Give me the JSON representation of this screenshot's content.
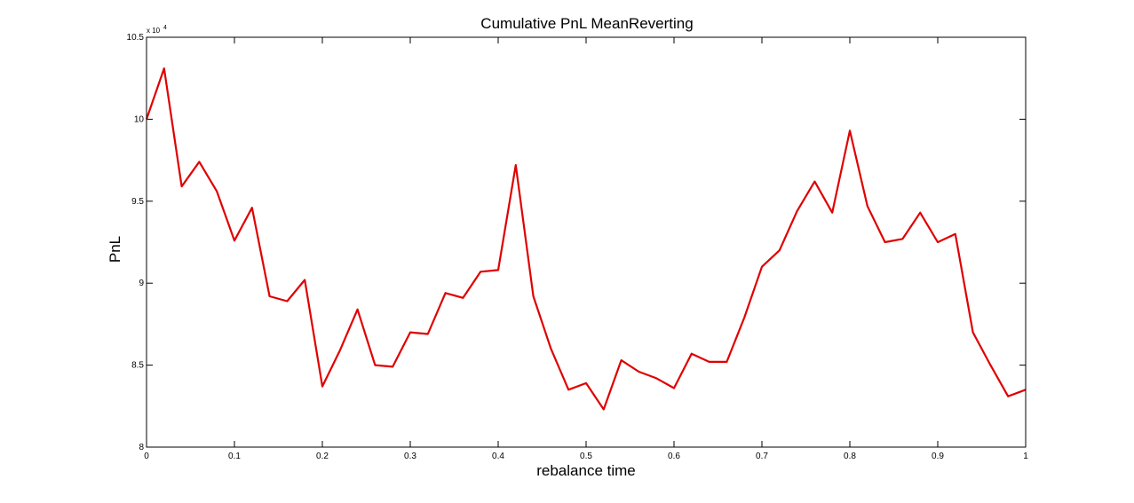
{
  "chart_data": {
    "type": "line",
    "title": "Cumulative PnL MeanReverting",
    "xlabel": "rebalance time",
    "ylabel": "PnL",
    "xlim": [
      0,
      1
    ],
    "ylim": [
      8,
      10.5
    ],
    "y_multiplier_label": "x 10",
    "y_multiplier_exponent": "4",
    "x_ticks": [
      0,
      0.1,
      0.2,
      0.3,
      0.4,
      0.5,
      0.6,
      0.7,
      0.8,
      0.9,
      1
    ],
    "x_tick_labels": [
      "0",
      "0.1",
      "0.2",
      "0.3",
      "0.4",
      "0.5",
      "0.6",
      "0.7",
      "0.8",
      "0.9",
      "1"
    ],
    "y_ticks": [
      8,
      8.5,
      9,
      9.5,
      10,
      10.5
    ],
    "y_tick_labels": [
      "8",
      "8.5",
      "9",
      "9.5",
      "10",
      "10.5"
    ],
    "grid": false,
    "series": [
      {
        "color": "#e00000",
        "x": [
          0,
          0.02,
          0.04,
          0.06,
          0.08,
          0.1,
          0.12,
          0.14,
          0.16,
          0.18,
          0.2,
          0.22,
          0.24,
          0.26,
          0.28,
          0.3,
          0.32,
          0.34,
          0.36,
          0.38,
          0.4,
          0.42,
          0.44,
          0.46,
          0.48,
          0.5,
          0.52,
          0.54,
          0.56,
          0.58,
          0.6,
          0.62,
          0.64,
          0.66,
          0.68,
          0.7,
          0.72,
          0.74,
          0.76,
          0.78,
          0.8,
          0.82,
          0.84,
          0.86,
          0.88,
          0.9,
          0.92,
          0.94,
          0.96,
          0.98,
          1.0
        ],
        "y": [
          10.0,
          10.31,
          9.59,
          9.74,
          9.56,
          9.26,
          9.46,
          8.92,
          8.89,
          9.02,
          8.37,
          8.59,
          8.84,
          8.5,
          8.49,
          8.7,
          8.69,
          8.94,
          8.91,
          9.07,
          9.08,
          9.72,
          8.92,
          8.6,
          8.35,
          8.39,
          8.23,
          8.53,
          8.46,
          8.42,
          8.36,
          8.57,
          8.52,
          8.52,
          8.79,
          9.1,
          9.2,
          9.44,
          9.62,
          9.43,
          9.93,
          9.47,
          9.25,
          9.27,
          9.43,
          9.25,
          9.3,
          8.7,
          8.5,
          8.31,
          8.35
        ]
      }
    ]
  }
}
